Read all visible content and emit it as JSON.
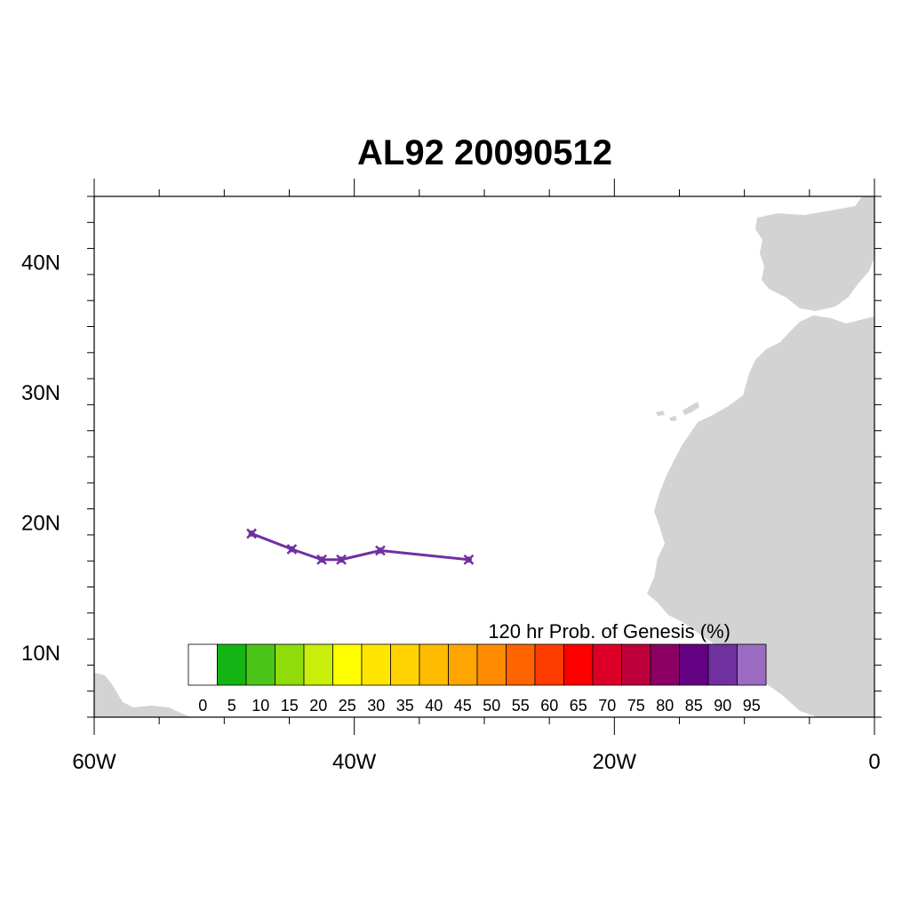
{
  "title": "AL92 20090512",
  "map": {
    "lon_range": [
      -60,
      0
    ],
    "lat_range": [
      5,
      45
    ],
    "land_color": "#d3d3d3",
    "track_color": "#7030a0",
    "x_ticks": [
      {
        "lon": -60,
        "label": "60W"
      },
      {
        "lon": -40,
        "label": "40W"
      },
      {
        "lon": -20,
        "label": "20W"
      },
      {
        "lon": 0,
        "label": "0"
      }
    ],
    "y_ticks": [
      {
        "lat": 10,
        "label": "10N"
      },
      {
        "lat": 20,
        "label": "20N"
      },
      {
        "lat": 30,
        "label": "30N"
      },
      {
        "lat": 40,
        "label": "40N"
      }
    ]
  },
  "chart_data": {
    "type": "scatter",
    "title": "AL92 20090512",
    "xlim": [
      -60,
      0
    ],
    "ylim": [
      5,
      45
    ],
    "series": [
      {
        "points": [
          {
            "lon": -47.9,
            "lat": 19.1
          },
          {
            "lon": -44.8,
            "lat": 17.9
          },
          {
            "lon": -42.5,
            "lat": 17.1
          },
          {
            "lon": -41.0,
            "lat": 17.1
          },
          {
            "lon": -38.0,
            "lat": 17.8
          },
          {
            "lon": -31.2,
            "lat": 17.1
          }
        ],
        "color": "#7030a0"
      }
    ]
  },
  "colorbar": {
    "title": "120 hr Prob. of Genesis (%)",
    "labels": [
      "0",
      "5",
      "10",
      "15",
      "20",
      "25",
      "30",
      "35",
      "40",
      "45",
      "50",
      "55",
      "60",
      "65",
      "70",
      "75",
      "80",
      "85",
      "90",
      "95"
    ],
    "colors": [
      "#ffffff",
      "#13b413",
      "#4cc51a",
      "#8fdc0a",
      "#c8ee0a",
      "#ffff00",
      "#ffe600",
      "#ffd200",
      "#ffbb00",
      "#ffa500",
      "#ff8c00",
      "#ff6400",
      "#ff3c00",
      "#ff0000",
      "#dc0028",
      "#be003c",
      "#8c0064",
      "#640082",
      "#7030a0",
      "#9b6bc2"
    ]
  }
}
